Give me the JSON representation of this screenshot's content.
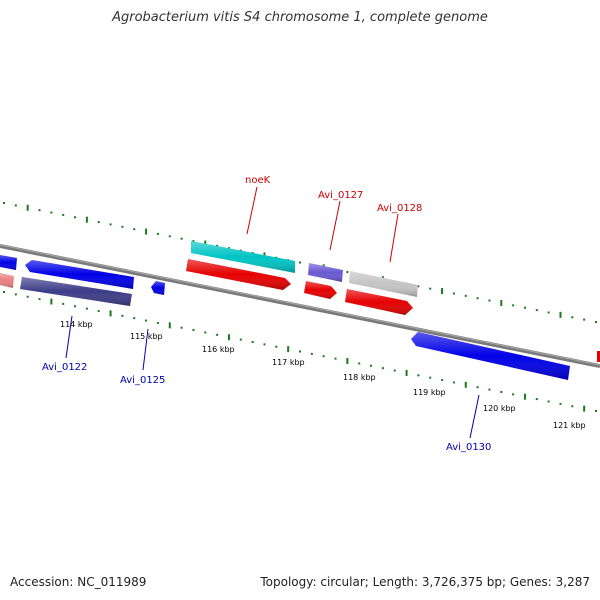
{
  "title": "Agrobacterium vitis S4 chromosome 1, complete genome",
  "footer": {
    "accession": "Accession: NC_011989",
    "summary": "Topology: circular; Length: 3,726,375 bp; Genes: 3,287"
  },
  "ticks": [
    "114 kbp",
    "115 kbp",
    "116 kbp",
    "117 kbp",
    "118 kbp",
    "119 kbp",
    "120 kbp",
    "121 kbp"
  ],
  "gene_labels": [
    {
      "text": "noeK",
      "strand": "forward"
    },
    {
      "text": "Avi_0127",
      "strand": "forward"
    },
    {
      "text": "Avi_0128",
      "strand": "forward"
    },
    {
      "text": "Avi_0122",
      "strand": "reverse"
    },
    {
      "text": "Avi_0125",
      "strand": "reverse"
    },
    {
      "text": "Avi_0130",
      "strand": "reverse"
    }
  ],
  "colors": {
    "forward_label": "#cc0000",
    "reverse_label": "#0000aa",
    "backbone": "#808080",
    "tick": "#1a7a1a",
    "red_gene": "#e60000",
    "blue_gene": "#0000e6",
    "cyan_gene": "#00c0c0",
    "navy_gene": "#3a3a8a",
    "purple_gene": "#6a5acd",
    "grey_gene": "#c0c0c0",
    "pink_gene": "#e88080"
  }
}
